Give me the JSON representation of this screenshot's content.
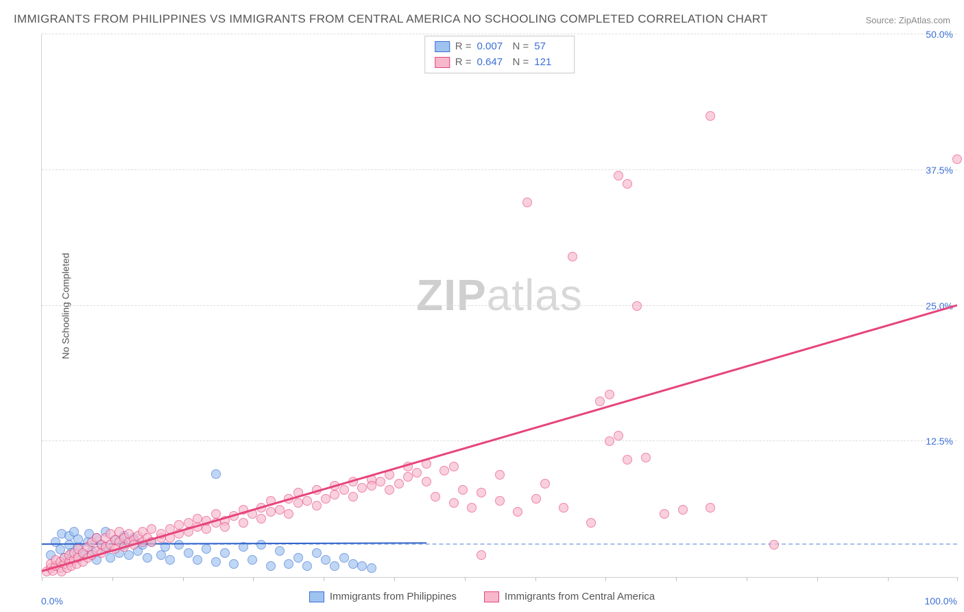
{
  "title": "IMMIGRANTS FROM PHILIPPINES VS IMMIGRANTS FROM CENTRAL AMERICA NO SCHOOLING COMPLETED CORRELATION CHART",
  "source": "Source: ZipAtlas.com",
  "ylabel": "No Schooling Completed",
  "watermark_a": "ZIP",
  "watermark_b": "atlas",
  "chart": {
    "type": "scatter",
    "xlim": [
      0,
      100
    ],
    "ylim": [
      0,
      50
    ],
    "xtick_positions": [
      0,
      7.7,
      15.4,
      23.1,
      30.8,
      38.5,
      46.2,
      53.9,
      61.6,
      69.3,
      77.0,
      84.7,
      92.4,
      100
    ],
    "xtick_labels": {
      "min": "0.0%",
      "max": "100.0%"
    },
    "ytick_positions": [
      12.5,
      25.0,
      37.5,
      50.0
    ],
    "ytick_labels": [
      "12.5%",
      "25.0%",
      "37.5%",
      "50.0%"
    ],
    "baseline_y": 3.0,
    "background_color": "#ffffff",
    "grid_color": "#dcdcdc",
    "marker_radius": 7,
    "series": [
      {
        "key": "philippines",
        "label": "Immigrants from Philippines",
        "fill": "#9ec3ef",
        "stroke": "#3b6fd6",
        "R": "0.007",
        "N": "57",
        "trend": {
          "x1": 0,
          "y1": 3.0,
          "x2": 42,
          "y2": 3.1,
          "color": "#2f62c9",
          "width": 2
        },
        "points": [
          [
            1,
            2.0
          ],
          [
            1.5,
            3.2
          ],
          [
            2,
            2.5
          ],
          [
            2.2,
            4.0
          ],
          [
            2.5,
            1.8
          ],
          [
            3,
            3.0
          ],
          [
            3,
            3.8
          ],
          [
            3.2,
            2.2
          ],
          [
            3.5,
            4.2
          ],
          [
            4,
            2.8
          ],
          [
            4,
            3.5
          ],
          [
            4.5,
            2.0
          ],
          [
            5,
            3.2
          ],
          [
            5.2,
            4.0
          ],
          [
            5.5,
            2.4
          ],
          [
            6,
            3.6
          ],
          [
            6,
            1.6
          ],
          [
            6.5,
            3.0
          ],
          [
            7,
            2.6
          ],
          [
            7,
            4.2
          ],
          [
            7.5,
            1.8
          ],
          [
            8,
            3.4
          ],
          [
            8.5,
            2.2
          ],
          [
            9,
            3.0
          ],
          [
            9,
            3.8
          ],
          [
            9.5,
            2.0
          ],
          [
            10,
            3.6
          ],
          [
            10.5,
            2.4
          ],
          [
            11,
            3.0
          ],
          [
            11.5,
            1.8
          ],
          [
            12,
            3.2
          ],
          [
            13,
            2.0
          ],
          [
            13.5,
            2.8
          ],
          [
            14,
            1.6
          ],
          [
            15,
            3.0
          ],
          [
            16,
            2.2
          ],
          [
            17,
            1.6
          ],
          [
            18,
            2.6
          ],
          [
            19,
            1.4
          ],
          [
            19,
            9.5
          ],
          [
            20,
            2.2
          ],
          [
            21,
            1.2
          ],
          [
            22,
            2.8
          ],
          [
            23,
            1.6
          ],
          [
            24,
            3.0
          ],
          [
            25,
            1.0
          ],
          [
            26,
            2.4
          ],
          [
            27,
            1.2
          ],
          [
            28,
            1.8
          ],
          [
            29,
            1.0
          ],
          [
            30,
            2.2
          ],
          [
            31,
            1.6
          ],
          [
            32,
            1.0
          ],
          [
            33,
            1.8
          ],
          [
            34,
            1.2
          ],
          [
            35,
            1.0
          ],
          [
            36,
            0.8
          ]
        ]
      },
      {
        "key": "central_america",
        "label": "Immigrants from Central America",
        "fill": "#f7b8cc",
        "stroke": "#e6447a",
        "R": "0.647",
        "N": "121",
        "trend": {
          "x1": 0,
          "y1": 0.5,
          "x2": 100,
          "y2": 25.0,
          "color": "#e6447a",
          "width": 2.5
        },
        "points": [
          [
            0.5,
            0.5
          ],
          [
            1,
            0.8
          ],
          [
            1,
            1.2
          ],
          [
            1.2,
            0.6
          ],
          [
            1.5,
            1.0
          ],
          [
            1.5,
            1.6
          ],
          [
            2.0,
            0.8
          ],
          [
            2.0,
            1.4
          ],
          [
            2.2,
            0.5
          ],
          [
            2.5,
            1.2
          ],
          [
            2.5,
            1.8
          ],
          [
            2.8,
            0.8
          ],
          [
            3.0,
            1.4
          ],
          [
            3.0,
            2.0
          ],
          [
            3.2,
            1.0
          ],
          [
            3.5,
            1.6
          ],
          [
            3.5,
            2.2
          ],
          [
            3.8,
            1.2
          ],
          [
            4.0,
            1.8
          ],
          [
            4.0,
            2.6
          ],
          [
            4.5,
            1.4
          ],
          [
            4.5,
            2.2
          ],
          [
            5.0,
            1.8
          ],
          [
            5.0,
            2.8
          ],
          [
            5.5,
            2.0
          ],
          [
            5.5,
            3.2
          ],
          [
            6.0,
            2.4
          ],
          [
            6.0,
            3.6
          ],
          [
            6.5,
            2.2
          ],
          [
            6.5,
            3.0
          ],
          [
            7.0,
            2.8
          ],
          [
            7.0,
            3.6
          ],
          [
            7.5,
            3.0
          ],
          [
            7.5,
            4.0
          ],
          [
            8.0,
            2.6
          ],
          [
            8.0,
            3.4
          ],
          [
            8.5,
            3.2
          ],
          [
            8.5,
            4.2
          ],
          [
            9.0,
            3.6
          ],
          [
            9.0,
            2.8
          ],
          [
            9.5,
            3.2
          ],
          [
            9.5,
            4.0
          ],
          [
            10,
            3.4
          ],
          [
            10,
            3.0
          ],
          [
            10.5,
            3.8
          ],
          [
            11,
            3.2
          ],
          [
            11,
            4.2
          ],
          [
            11.5,
            3.6
          ],
          [
            12,
            3.2
          ],
          [
            12,
            4.4
          ],
          [
            13,
            3.6
          ],
          [
            13,
            4.0
          ],
          [
            14,
            4.4
          ],
          [
            14,
            3.6
          ],
          [
            15,
            4.0
          ],
          [
            15,
            4.8
          ],
          [
            16,
            4.2
          ],
          [
            16,
            5.0
          ],
          [
            17,
            4.6
          ],
          [
            17,
            5.4
          ],
          [
            18,
            4.4
          ],
          [
            18,
            5.2
          ],
          [
            19,
            5.0
          ],
          [
            19,
            5.8
          ],
          [
            20,
            5.2
          ],
          [
            20,
            4.6
          ],
          [
            21,
            5.6
          ],
          [
            22,
            5.0
          ],
          [
            22,
            6.2
          ],
          [
            23,
            5.8
          ],
          [
            24,
            5.4
          ],
          [
            24,
            6.4
          ],
          [
            25,
            6.0
          ],
          [
            25,
            7.0
          ],
          [
            26,
            6.2
          ],
          [
            27,
            5.8
          ],
          [
            27,
            7.2
          ],
          [
            28,
            6.8
          ],
          [
            28,
            7.8
          ],
          [
            29,
            7.0
          ],
          [
            30,
            6.6
          ],
          [
            30,
            8.0
          ],
          [
            31,
            7.2
          ],
          [
            32,
            8.4
          ],
          [
            32,
            7.6
          ],
          [
            33,
            8.0
          ],
          [
            34,
            8.8
          ],
          [
            34,
            7.4
          ],
          [
            35,
            8.2
          ],
          [
            36,
            9.0
          ],
          [
            36,
            8.4
          ],
          [
            37,
            8.8
          ],
          [
            38,
            8.0
          ],
          [
            38,
            9.4
          ],
          [
            39,
            8.6
          ],
          [
            40,
            9.2
          ],
          [
            40,
            10.2
          ],
          [
            41,
            9.6
          ],
          [
            42,
            8.8
          ],
          [
            42,
            10.4
          ],
          [
            43,
            7.4
          ],
          [
            44,
            9.8
          ],
          [
            45,
            6.8
          ],
          [
            45,
            10.2
          ],
          [
            46,
            8.0
          ],
          [
            47,
            6.4
          ],
          [
            48,
            7.8
          ],
          [
            48,
            2.0
          ],
          [
            50,
            7.0
          ],
          [
            50,
            9.4
          ],
          [
            52,
            6.0
          ],
          [
            53,
            34.5
          ],
          [
            54,
            7.2
          ],
          [
            55,
            8.6
          ],
          [
            57,
            6.4
          ],
          [
            58,
            29.5
          ],
          [
            60,
            5.0
          ],
          [
            61,
            16.2
          ],
          [
            62,
            16.8
          ],
          [
            62,
            12.5
          ],
          [
            63,
            37.0
          ],
          [
            63,
            13.0
          ],
          [
            64,
            36.2
          ],
          [
            64,
            10.8
          ],
          [
            65,
            25.0
          ],
          [
            66,
            11.0
          ],
          [
            68,
            5.8
          ],
          [
            70,
            6.2
          ],
          [
            73,
            6.4
          ],
          [
            73,
            42.5
          ],
          [
            80,
            3.0
          ],
          [
            100,
            38.5
          ]
        ]
      }
    ]
  }
}
